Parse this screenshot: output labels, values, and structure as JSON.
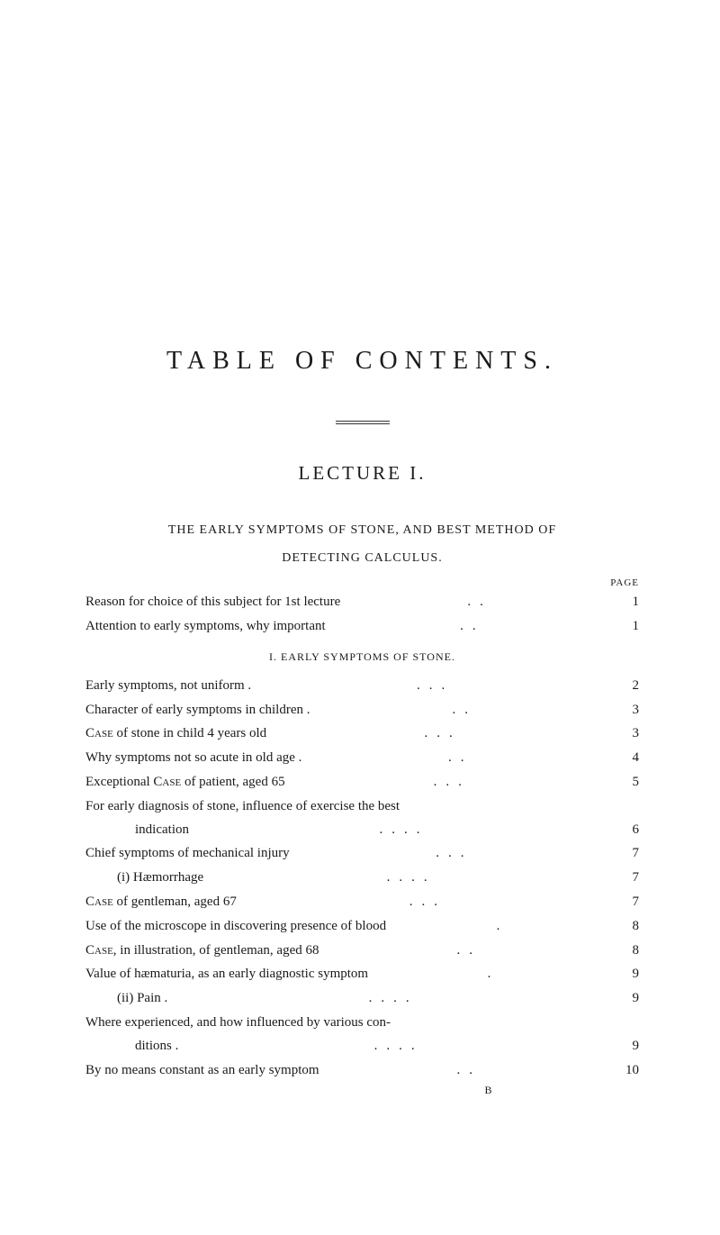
{
  "title": "TABLE OF CONTENTS.",
  "lecture": "LECTURE I.",
  "chapterHeading1": "THE EARLY SYMPTOMS OF STONE, AND BEST METHOD OF",
  "chapterHeading2": "DETECTING CALCULUS.",
  "pageLabel": "PAGE",
  "section1Heading": "I. EARLY SYMPTOMS OF STONE.",
  "signature": "B",
  "introEntries": [
    {
      "text": "Reason for choice of this subject for 1st lecture",
      "dots": "..",
      "page": "1"
    },
    {
      "text": "Attention to early symptoms, why important",
      "dots": "..",
      "page": "1"
    }
  ],
  "section1Entries": [
    {
      "text": "Early symptoms, not uniform .",
      "dots": "...",
      "page": "2",
      "indent": "indent-1"
    },
    {
      "text": "Character of early symptoms in children .",
      "dots": "..",
      "page": "3",
      "indent": "indent-1"
    },
    {
      "text": "Case of stone in child 4 years old",
      "dots": "...",
      "page": "3",
      "indent": "indent-1",
      "sc": "Case"
    },
    {
      "text": "Why symptoms not so acute in old age .",
      "dots": "..",
      "page": "4",
      "indent": "indent-1"
    },
    {
      "text": "Exceptional Case of patient, aged 65",
      "dots": "...",
      "page": "5",
      "indent": "indent-1",
      "sc": "Case"
    }
  ],
  "multiEntry": {
    "line1": "For early diagnosis of stone, influence of exercise the best",
    "line2": "indication",
    "dots": "....",
    "page": "6"
  },
  "section1EntriesB": [
    {
      "text": "Chief symptoms of mechanical injury",
      "dots": "...",
      "page": "7",
      "indent": "indent-1"
    },
    {
      "text": "(i) Hæmorrhage",
      "dots": "....",
      "page": "7",
      "indent": "indent-3"
    },
    {
      "text": "Case of gentleman, aged 67",
      "dots": "...",
      "page": "7",
      "indent": "indent-1",
      "sc": "Case"
    },
    {
      "text": "Use of the microscope in discovering presence of blood",
      "dots": ".",
      "page": "8",
      "indent": "indent-1"
    },
    {
      "text": "Case, in illustration, of gentleman, aged 68",
      "dots": "..",
      "page": "8",
      "indent": "indent-1",
      "sc": "Case"
    },
    {
      "text": "Value of hæmaturia, as an early diagnostic symptom",
      "dots": ".",
      "page": "9",
      "indent": "indent-1"
    },
    {
      "text": "(ii) Pain .",
      "dots": "....",
      "page": "9",
      "indent": "indent-3"
    }
  ],
  "multiEntry2": {
    "line1": "Where experienced, and how influenced by various con-",
    "line2": "ditions .",
    "dots": "....",
    "page": "9"
  },
  "lastEntry": {
    "text": "By no means constant as an early symptom",
    "dots": "..",
    "page": "10",
    "indent": "indent-1"
  }
}
